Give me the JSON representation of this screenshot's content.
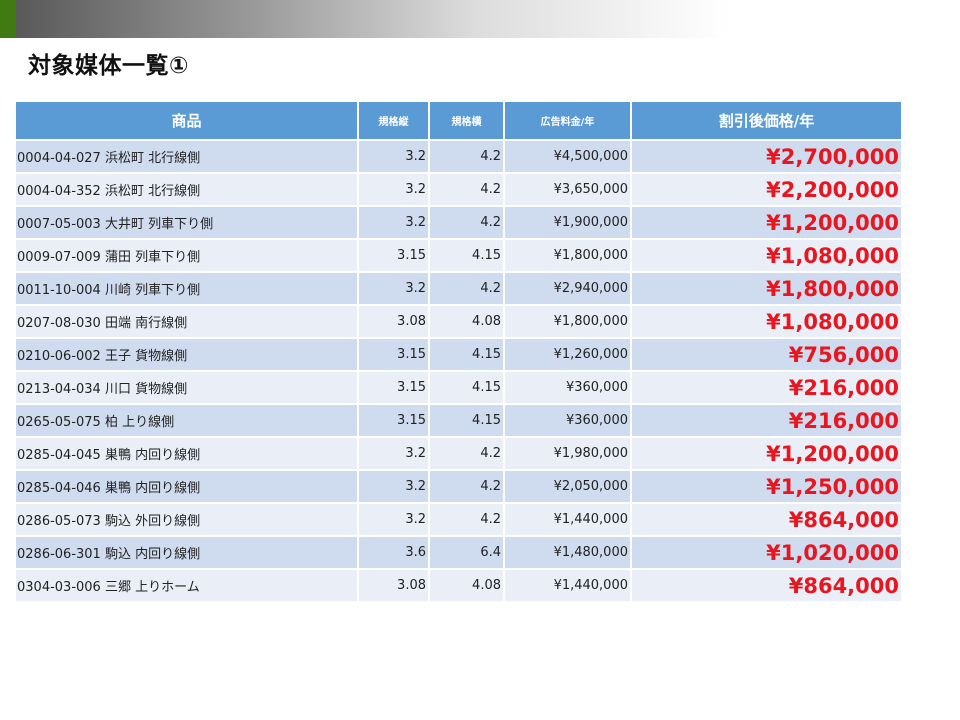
{
  "slide": {
    "title": "対象媒体一覧①"
  },
  "table": {
    "headers": [
      "商品",
      "規格縦",
      "規格横",
      "広告料金/年",
      "割引後価格/年"
    ],
    "rows": [
      [
        "0004-04-027 浜松町 北行線側",
        "3.2",
        "4.2",
        "¥4,500,000",
        "¥2,700,000"
      ],
      [
        "0004-04-352 浜松町 北行線側",
        "3.2",
        "4.2",
        "¥3,650,000",
        "¥2,200,000"
      ],
      [
        "0007-05-003 大井町 列車下り側",
        "3.2",
        "4.2",
        "¥1,900,000",
        "¥1,200,000"
      ],
      [
        "0009-07-009 蒲田 列車下り側",
        "3.15",
        "4.15",
        "¥1,800,000",
        "¥1,080,000"
      ],
      [
        "0011-10-004 川崎 列車下り側",
        "3.2",
        "4.2",
        "¥2,940,000",
        "¥1,800,000"
      ],
      [
        "0207-08-030 田端 南行線側",
        "3.08",
        "4.08",
        "¥1,800,000",
        "¥1,080,000"
      ],
      [
        "0210-06-002 王子 貨物線側",
        "3.15",
        "4.15",
        "¥1,260,000",
        "¥756,000"
      ],
      [
        "0213-04-034 川口 貨物線側",
        "3.15",
        "4.15",
        "¥360,000",
        "¥216,000"
      ],
      [
        "0265-05-075 柏 上り線側",
        "3.15",
        "4.15",
        "¥360,000",
        "¥216,000"
      ],
      [
        "0285-04-045 巣鴨 内回り線側",
        "3.2",
        "4.2",
        "¥1,980,000",
        "¥1,200,000"
      ],
      [
        "0285-04-046 巣鴨 内回り線側",
        "3.2",
        "4.2",
        "¥2,050,000",
        "¥1,250,000"
      ],
      [
        "0286-05-073 駒込 外回り線側",
        "3.2",
        "4.2",
        "¥1,440,000",
        "¥864,000"
      ],
      [
        "0286-06-301 駒込 内回り線側",
        "3.6",
        "6.4",
        "¥1,480,000",
        "¥1,020,000"
      ],
      [
        "0304-03-006 三郷 上りホーム",
        "3.08",
        "4.08",
        "¥1,440,000",
        "¥864,000"
      ]
    ]
  },
  "colors": {
    "header_bg": "#5b9bd5",
    "row_odd": "#cfdbee",
    "row_even": "#e9eef7",
    "discount_text": "#e8161f",
    "accent_green": "#3f7a12"
  }
}
